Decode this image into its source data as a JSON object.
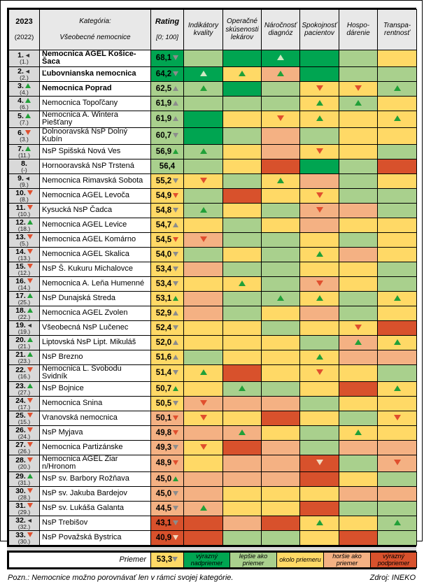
{
  "palette": {
    "dark_green": "#00A551",
    "light_green": "#A9D08D",
    "yellow": "#FFD966",
    "orange": "#F4B183",
    "red": "#D8512C",
    "tri_green": "#21A038",
    "tri_red": "#E04F2E",
    "tri_gray": "#8C8C8C",
    "tri_pale_up": "#CFE9C3",
    "tri_pale_down": "#F2D8BE"
  },
  "header": {
    "year": "2023",
    "prev_year": "(2022)",
    "category_line1": "Kategória:",
    "category_line2": "Všeobecné nemocnice",
    "rating_line1": "Rating",
    "rating_line2": "[0; 100]",
    "columns": [
      "Indikátory kvality",
      "Operačné skúsenosti lekárov",
      "Náročnosť diagnóz",
      "Spokojnosť pacientov",
      "Hospo-\ndárenie",
      "Transpa-\nrentnosť"
    ]
  },
  "rows": [
    {
      "rank": "1.",
      "prev": "(1.)",
      "move": "same",
      "name": "Nemocnica AGEL Košice-Šaca",
      "bold": true,
      "rating": "68,1",
      "rtri": "ad",
      "rbg": "dg",
      "cells": [
        [
          "lg",
          ""
        ],
        [
          "dg",
          ""
        ],
        [
          "dg",
          "pu"
        ],
        [
          "dg",
          ""
        ],
        [
          "lg",
          ""
        ],
        [
          "y",
          ""
        ]
      ]
    },
    {
      "rank": "2.",
      "prev": "(2.)",
      "move": "same",
      "name": "Ľubovnianska nemocnica",
      "bold": true,
      "rating": "64,2",
      "rtri": "ad",
      "rbg": "dg",
      "cells": [
        [
          "dg",
          "pu"
        ],
        [
          "y",
          "gu"
        ],
        [
          "o",
          "gu"
        ],
        [
          "dg",
          ""
        ],
        [
          "lg",
          ""
        ],
        [
          "lg",
          ""
        ]
      ]
    },
    {
      "rank": "3.",
      "prev": "(4.)",
      "move": "up",
      "name": "Nemocnica Poprad",
      "bold": true,
      "rating": "62,5",
      "rtri": "au",
      "rbg": "lg",
      "cells": [
        [
          "lg",
          "gu"
        ],
        [
          "dg",
          ""
        ],
        [
          "lg",
          ""
        ],
        [
          "y",
          "rd"
        ],
        [
          "y",
          "rd"
        ],
        [
          "lg",
          "gu"
        ]
      ]
    },
    {
      "rank": "4.",
      "prev": "(6.)",
      "move": "up",
      "name": "Nemocnica Topoľčany",
      "bold": false,
      "rating": "61,9",
      "rtri": "au",
      "rbg": "lg",
      "cells": [
        [
          "lg",
          ""
        ],
        [
          "lg",
          ""
        ],
        [
          "lg",
          ""
        ],
        [
          "y",
          "gu"
        ],
        [
          "lg",
          "gu"
        ],
        [
          "y",
          ""
        ]
      ]
    },
    {
      "rank": "5.",
      "prev": "(7.)",
      "move": "up",
      "name": "Nemocnica A. Wintera Piešťany",
      "bold": false,
      "rating": "61,9",
      "rtri": "au",
      "rbg": "lg",
      "cells": [
        [
          "dg",
          ""
        ],
        [
          "y",
          ""
        ],
        [
          "y",
          "rd"
        ],
        [
          "y",
          "gu"
        ],
        [
          "y",
          ""
        ],
        [
          "y",
          "gu"
        ]
      ]
    },
    {
      "rank": "6.",
      "prev": "(3.)",
      "move": "down",
      "name": "Dolnooravská NsP Dolný Kubín",
      "bold": false,
      "rating": "60,7",
      "rtri": "ad",
      "rbg": "lg",
      "cells": [
        [
          "dg",
          ""
        ],
        [
          "lg",
          ""
        ],
        [
          "o",
          ""
        ],
        [
          "lg",
          ""
        ],
        [
          "y",
          ""
        ],
        [
          "y",
          ""
        ]
      ]
    },
    {
      "rank": "7.",
      "prev": "(11.)",
      "move": "up",
      "name": "NsP Spišská Nová Ves",
      "bold": false,
      "rating": "56,9",
      "rtri": "gu",
      "rbg": "lg",
      "cells": [
        [
          "lg",
          "gu"
        ],
        [
          "y",
          ""
        ],
        [
          "o",
          ""
        ],
        [
          "y",
          "rd"
        ],
        [
          "y",
          ""
        ],
        [
          "lg",
          ""
        ]
      ]
    },
    {
      "rank": "8.",
      "prev": "(-)",
      "move": "none",
      "name": "Hornooravská NsP Trstená",
      "bold": false,
      "rating": "56,4",
      "rtri": "",
      "rbg": "lg",
      "cells": [
        [
          "lg",
          ""
        ],
        [
          "y",
          ""
        ],
        [
          "r",
          ""
        ],
        [
          "dg",
          ""
        ],
        [
          "lg",
          ""
        ],
        [
          "r",
          ""
        ]
      ]
    },
    {
      "rank": "9.",
      "prev": "(9.)",
      "move": "same",
      "name": "Nemocnica Rimavská Sobota",
      "bold": false,
      "rating": "55,2",
      "rtri": "ad",
      "rbg": "y",
      "cells": [
        [
          "y",
          "rd"
        ],
        [
          "lg",
          ""
        ],
        [
          "y",
          "gu"
        ],
        [
          "o",
          ""
        ],
        [
          "lg",
          ""
        ],
        [
          "y",
          ""
        ]
      ]
    },
    {
      "rank": "10.",
      "prev": "(8.)",
      "move": "down",
      "name": "Nemocnica AGEL Levoča",
      "bold": false,
      "rating": "54,9",
      "rtri": "rd",
      "rbg": "y",
      "cells": [
        [
          "lg",
          ""
        ],
        [
          "r",
          ""
        ],
        [
          "y",
          ""
        ],
        [
          "y",
          "rd"
        ],
        [
          "lg",
          ""
        ],
        [
          "lg",
          ""
        ]
      ]
    },
    {
      "rank": "11.",
      "prev": "(10.)",
      "move": "down",
      "name": "Kysucká NsP Čadca",
      "bold": false,
      "rating": "54,8",
      "rtri": "ad",
      "rbg": "y",
      "cells": [
        [
          "lg",
          "gu"
        ],
        [
          "y",
          ""
        ],
        [
          "lg",
          ""
        ],
        [
          "o",
          "rd"
        ],
        [
          "o",
          ""
        ],
        [
          "lg",
          ""
        ]
      ]
    },
    {
      "rank": "12.",
      "prev": "(18.)",
      "move": "up",
      "name": "Nemocnica AGEL Levice",
      "bold": false,
      "rating": "54,7",
      "rtri": "au",
      "rbg": "y",
      "cells": [
        [
          "y",
          ""
        ],
        [
          "lg",
          ""
        ],
        [
          "y",
          ""
        ],
        [
          "o",
          ""
        ],
        [
          "y",
          ""
        ],
        [
          "y",
          ""
        ]
      ]
    },
    {
      "rank": "13.",
      "prev": "(5.)",
      "move": "down",
      "name": "Nemocnica AGEL Komárno",
      "bold": false,
      "rating": "54,5",
      "rtri": "rd",
      "rbg": "y",
      "cells": [
        [
          "o",
          "rd"
        ],
        [
          "lg",
          ""
        ],
        [
          "lg",
          ""
        ],
        [
          "y",
          ""
        ],
        [
          "lg",
          ""
        ],
        [
          "y",
          ""
        ]
      ]
    },
    {
      "rank": "14.",
      "prev": "(13.)",
      "move": "down",
      "name": "Nemocnica AGEL Skalica",
      "bold": false,
      "rating": "54,0",
      "rtri": "ad",
      "rbg": "y",
      "cells": [
        [
          "lg",
          ""
        ],
        [
          "y",
          ""
        ],
        [
          "lg",
          ""
        ],
        [
          "y",
          "gu"
        ],
        [
          "o",
          ""
        ],
        [
          "y",
          ""
        ]
      ]
    },
    {
      "rank": "15.",
      "prev": "(12.)",
      "move": "down",
      "name": "NsP Š. Kukuru Michalovce",
      "bold": false,
      "rating": "53,4",
      "rtri": "ad",
      "rbg": "y",
      "cells": [
        [
          "o",
          ""
        ],
        [
          "lg",
          ""
        ],
        [
          "lg",
          ""
        ],
        [
          "y",
          ""
        ],
        [
          "y",
          ""
        ],
        [
          "lg",
          ""
        ]
      ]
    },
    {
      "rank": "16.",
      "prev": "(14.)",
      "move": "down",
      "name": "Nemocnica A. Leňa Humenné",
      "bold": false,
      "rating": "53,4",
      "rtri": "ad",
      "rbg": "y",
      "cells": [
        [
          "y",
          ""
        ],
        [
          "y",
          "gu"
        ],
        [
          "lg",
          ""
        ],
        [
          "o",
          "rd"
        ],
        [
          "y",
          ""
        ],
        [
          "lg",
          ""
        ]
      ]
    },
    {
      "rank": "17.",
      "prev": "(25.)",
      "move": "up",
      "name": "NsP Dunajská Streda",
      "bold": false,
      "rating": "53,1",
      "rtri": "gu",
      "rbg": "y",
      "cells": [
        [
          "o",
          ""
        ],
        [
          "lg",
          ""
        ],
        [
          "lg",
          "gu"
        ],
        [
          "y",
          "gu"
        ],
        [
          "lg",
          ""
        ],
        [
          "y",
          "gu"
        ]
      ]
    },
    {
      "rank": "18.",
      "prev": "(22.)",
      "move": "up",
      "name": "Nemocnica AGEL Zvolen",
      "bold": false,
      "rating": "52,9",
      "rtri": "au",
      "rbg": "y",
      "cells": [
        [
          "o",
          ""
        ],
        [
          "lg",
          ""
        ],
        [
          "y",
          ""
        ],
        [
          "o",
          ""
        ],
        [
          "lg",
          ""
        ],
        [
          "y",
          ""
        ]
      ]
    },
    {
      "rank": "19.",
      "prev": "(19.)",
      "move": "same",
      "name": "Všeobecná NsP Lučenec",
      "bold": false,
      "rating": "52,4",
      "rtri": "ad",
      "rbg": "y",
      "cells": [
        [
          "y",
          ""
        ],
        [
          "y",
          ""
        ],
        [
          "lg",
          ""
        ],
        [
          "y",
          ""
        ],
        [
          "y",
          "rd"
        ],
        [
          "r",
          ""
        ]
      ]
    },
    {
      "rank": "20.",
      "prev": "(21.)",
      "move": "up",
      "name": "Liptovská NsP Lipt. Mikuláš",
      "bold": false,
      "rating": "52,0",
      "rtri": "au",
      "rbg": "y",
      "cells": [
        [
          "y",
          ""
        ],
        [
          "y",
          ""
        ],
        [
          "y",
          ""
        ],
        [
          "lg",
          ""
        ],
        [
          "o",
          "gu"
        ],
        [
          "y",
          "gu"
        ]
      ]
    },
    {
      "rank": "21.",
      "prev": "(23.)",
      "move": "up",
      "name": "NsP Brezno",
      "bold": false,
      "rating": "51,6",
      "rtri": "au",
      "rbg": "y",
      "cells": [
        [
          "lg",
          ""
        ],
        [
          "y",
          ""
        ],
        [
          "y",
          ""
        ],
        [
          "y",
          "gu"
        ],
        [
          "o",
          ""
        ],
        [
          "o",
          ""
        ]
      ]
    },
    {
      "rank": "22.",
      "prev": "(16.)",
      "move": "down",
      "name": "Nemocnica L. Svobodu Svidník",
      "bold": false,
      "rating": "51,4",
      "rtri": "ad",
      "rbg": "y",
      "cells": [
        [
          "y",
          "gu"
        ],
        [
          "r",
          ""
        ],
        [
          "y",
          ""
        ],
        [
          "y",
          "rd"
        ],
        [
          "y",
          ""
        ],
        [
          "lg",
          ""
        ]
      ]
    },
    {
      "rank": "23.",
      "prev": "(27.)",
      "move": "up",
      "name": "NsP Bojnice",
      "bold": false,
      "rating": "50,7",
      "rtri": "gu",
      "rbg": "y",
      "cells": [
        [
          "y",
          ""
        ],
        [
          "lg",
          "gu"
        ],
        [
          "lg",
          ""
        ],
        [
          "y",
          ""
        ],
        [
          "r",
          ""
        ],
        [
          "y",
          "gu"
        ]
      ]
    },
    {
      "rank": "24.",
      "prev": "(17.)",
      "move": "down",
      "name": "Nemocnica Snina",
      "bold": false,
      "rating": "50,5",
      "rtri": "ad",
      "rbg": "y",
      "cells": [
        [
          "o",
          "rd"
        ],
        [
          "o",
          ""
        ],
        [
          "o",
          ""
        ],
        [
          "lg",
          ""
        ],
        [
          "y",
          ""
        ],
        [
          "y",
          ""
        ]
      ]
    },
    {
      "rank": "25.",
      "prev": "(15.)",
      "move": "down",
      "name": "Vranovská nemocnica",
      "bold": false,
      "rating": "50,1",
      "rtri": "rd",
      "rbg": "o",
      "cells": [
        [
          "y",
          "rd"
        ],
        [
          "y",
          ""
        ],
        [
          "r",
          ""
        ],
        [
          "y",
          ""
        ],
        [
          "lg",
          ""
        ],
        [
          "y",
          "rd"
        ]
      ]
    },
    {
      "rank": "26.",
      "prev": "(24.)",
      "move": "down",
      "name": "NsP Myjava",
      "bold": false,
      "rating": "49,8",
      "rtri": "rd",
      "rbg": "o",
      "cells": [
        [
          "o",
          ""
        ],
        [
          "o",
          "gu"
        ],
        [
          "y",
          ""
        ],
        [
          "lg",
          ""
        ],
        [
          "y",
          "gu"
        ],
        [
          "y",
          ""
        ]
      ]
    },
    {
      "rank": "27.",
      "prev": "(26.)",
      "move": "down",
      "name": "Nemocnica Partizánske",
      "bold": false,
      "rating": "49,3",
      "rtri": "ad",
      "rbg": "o",
      "cells": [
        [
          "y",
          "rd"
        ],
        [
          "r",
          ""
        ],
        [
          "o",
          ""
        ],
        [
          "lg",
          ""
        ],
        [
          "o",
          ""
        ],
        [
          "o",
          ""
        ]
      ]
    },
    {
      "rank": "28.",
      "prev": "(20.)",
      "move": "down",
      "name": "Nemocnica AGEL Žiar n/Hronom",
      "bold": false,
      "rating": "48,9",
      "rtri": "rd",
      "rbg": "o",
      "cells": [
        [
          "y",
          ""
        ],
        [
          "o",
          ""
        ],
        [
          "o",
          ""
        ],
        [
          "r",
          "pd"
        ],
        [
          "lg",
          ""
        ],
        [
          "o",
          "rd"
        ]
      ]
    },
    {
      "rank": "29.",
      "prev": "(31.)",
      "move": "up",
      "name": "NsP sv. Barbory Rožňava",
      "bold": false,
      "rating": "45,0",
      "rtri": "gu",
      "rbg": "o",
      "cells": [
        [
          "o",
          ""
        ],
        [
          "o",
          ""
        ],
        [
          "o",
          ""
        ],
        [
          "r",
          ""
        ],
        [
          "y",
          ""
        ],
        [
          "lg",
          ""
        ]
      ]
    },
    {
      "rank": "30.",
      "prev": "(28.)",
      "move": "down",
      "name": "NsP sv. Jakuba Bardejov",
      "bold": false,
      "rating": "45,0",
      "rtri": "ad",
      "rbg": "o",
      "cells": [
        [
          "o",
          ""
        ],
        [
          "y",
          ""
        ],
        [
          "y",
          ""
        ],
        [
          "y",
          ""
        ],
        [
          "o",
          ""
        ],
        [
          "o",
          ""
        ]
      ]
    },
    {
      "rank": "31.",
      "prev": "(29.)",
      "move": "down",
      "name": "NsP sv. Lukáša Galanta",
      "bold": false,
      "rating": "44,5",
      "rtri": "ad",
      "rbg": "o",
      "cells": [
        [
          "o",
          "gu"
        ],
        [
          "y",
          ""
        ],
        [
          "y",
          ""
        ],
        [
          "r",
          ""
        ],
        [
          "lg",
          ""
        ],
        [
          "lg",
          ""
        ]
      ]
    },
    {
      "rank": "32.",
      "prev": "(32.)",
      "move": "same",
      "name": "NsP Trebišov",
      "bold": false,
      "rating": "43,1",
      "rtri": "ad",
      "rbg": "r",
      "cells": [
        [
          "r",
          ""
        ],
        [
          "o",
          ""
        ],
        [
          "r",
          ""
        ],
        [
          "y",
          "gu"
        ],
        [
          "y",
          ""
        ],
        [
          "lg",
          "gu"
        ]
      ]
    },
    {
      "rank": "33.",
      "prev": "(30.)",
      "move": "down",
      "name": "NsP Považská Bystrica",
      "bold": false,
      "rating": "40,9",
      "rtri": "pd",
      "rbg": "r",
      "cells": [
        [
          "r",
          ""
        ],
        [
          "lg",
          ""
        ],
        [
          "lg",
          ""
        ],
        [
          "y",
          ""
        ],
        [
          "r",
          ""
        ],
        [
          "lg",
          ""
        ]
      ]
    }
  ],
  "footer": {
    "label": "Priemer",
    "rating": "53,3",
    "rating_tri": "ad",
    "rating_bg": "y",
    "legend": [
      {
        "label": "výrazný nadpriemer",
        "bg": "dg"
      },
      {
        "label": "lepšie ako priemer",
        "bg": "lg"
      },
      {
        "label": "okolo priemeru",
        "bg": "y"
      },
      {
        "label": "horšie ako priemer",
        "bg": "o"
      },
      {
        "label": "výrazný podpriemer",
        "bg": "r"
      }
    ]
  },
  "note": "Pozn.: Nemocnice možno porovnávať len v rámci svojej kategórie.",
  "source": "Zdroj: INEKO"
}
